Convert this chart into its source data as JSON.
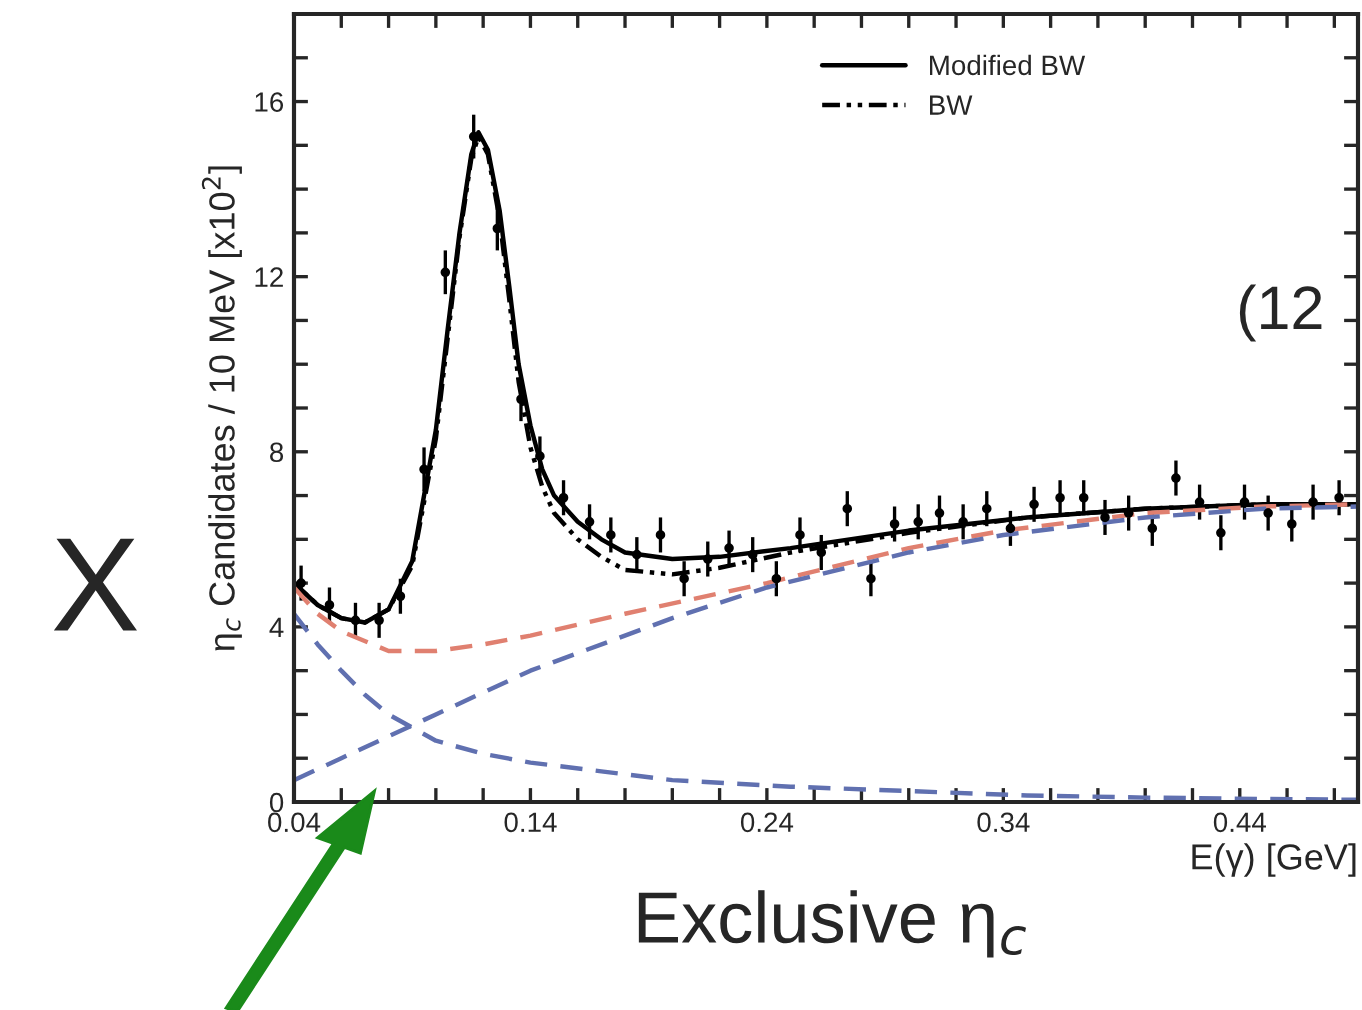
{
  "chart_data": {
    "type": "scatter",
    "xlabel": "E(γ) [GeV]",
    "ylabel": "η$_{c}$ Candidates / 10 MeV [x10$^{2}$]",
    "annotations": [
      "X",
      "(12",
      "Exclusive η$_{c}$"
    ],
    "xlim": [
      0.04,
      0.49
    ],
    "xticks": [
      0.04,
      {
        "value": 0.06,
        "label": null
      },
      {
        "value": 0.08,
        "label": null
      },
      {
        "value": 0.1,
        "label": null
      },
      {
        "value": 0.12,
        "label": null
      },
      0.14,
      {
        "value": 0.16,
        "label": null
      },
      {
        "value": 0.18,
        "label": null
      },
      {
        "value": 0.2,
        "label": null
      },
      {
        "value": 0.22,
        "label": null
      },
      0.24,
      {
        "value": 0.26,
        "label": null
      },
      {
        "value": 0.28,
        "label": null
      },
      {
        "value": 0.3,
        "label": null
      },
      {
        "value": 0.32,
        "label": null
      },
      0.34,
      {
        "value": 0.36,
        "label": null
      },
      {
        "value": 0.38,
        "label": null
      },
      {
        "value": 0.4,
        "label": null
      },
      {
        "value": 0.42,
        "label": null
      },
      0.44,
      {
        "value": 0.46,
        "label": null
      },
      {
        "value": 0.48,
        "label": null
      }
    ],
    "ylim": [
      0,
      18
    ],
    "yticks": [
      0,
      {
        "value": 1,
        "label": null
      },
      {
        "value": 2,
        "label": null
      },
      {
        "value": 3,
        "label": null
      },
      4,
      {
        "value": 5,
        "label": null
      },
      {
        "value": 6,
        "label": null
      },
      {
        "value": 7,
        "label": null
      },
      8,
      {
        "value": 9,
        "label": null
      },
      {
        "value": 10,
        "label": null
      },
      {
        "value": 11,
        "label": null
      },
      12,
      {
        "value": 13,
        "label": null
      },
      {
        "value": 14,
        "label": null
      },
      {
        "value": 15,
        "label": null
      },
      16,
      {
        "value": 17,
        "label": null
      }
    ],
    "legend": "top",
    "series": [
      {
        "color": "#000000",
        "marker": "circle",
        "x": [
          0.043,
          0.055,
          0.066,
          0.076,
          0.085,
          0.095,
          0.104,
          0.116,
          0.126,
          0.136,
          0.144,
          0.154,
          0.165,
          0.174,
          0.185,
          0.195,
          0.205,
          0.215,
          0.224,
          0.234,
          0.244,
          0.254,
          0.263,
          0.274,
          0.284,
          0.294,
          0.304,
          0.313,
          0.323,
          0.333,
          0.343,
          0.353,
          0.364,
          0.374,
          0.383,
          0.393,
          0.403,
          0.413,
          0.423,
          0.432,
          0.442,
          0.452,
          0.462,
          0.471,
          0.482
        ],
        "values": [
          5.0,
          4.5,
          4.15,
          4.15,
          4.7,
          7.6,
          12.1,
          15.2,
          13.1,
          9.2,
          7.9,
          6.95,
          6.4,
          6.1,
          5.65,
          6.1,
          5.1,
          5.55,
          5.8,
          5.65,
          5.1,
          6.1,
          5.7,
          6.7,
          5.1,
          6.35,
          6.4,
          6.6,
          6.4,
          6.7,
          6.25,
          6.8,
          6.95,
          6.95,
          6.5,
          6.6,
          6.25,
          7.4,
          6.85,
          6.15,
          6.85,
          6.6,
          6.35,
          6.85,
          6.95
        ],
        "errors": [
          0.4,
          0.4,
          0.4,
          0.4,
          0.4,
          0.5,
          0.5,
          0.5,
          0.5,
          0.5,
          0.45,
          0.4,
          0.4,
          0.4,
          0.4,
          0.4,
          0.4,
          0.4,
          0.4,
          0.4,
          0.4,
          0.4,
          0.4,
          0.4,
          0.4,
          0.4,
          0.4,
          0.4,
          0.4,
          0.4,
          0.4,
          0.4,
          0.4,
          0.4,
          0.4,
          0.4,
          0.4,
          0.4,
          0.4,
          0.4,
          0.4,
          0.4,
          0.4,
          0.4,
          0.4
        ]
      },
      {
        "type": "line",
        "name": "Modified BW",
        "color": "#000000",
        "line_style": "solid",
        "x": [
          0.04,
          0.05,
          0.06,
          0.07,
          0.08,
          0.09,
          0.1,
          0.105,
          0.11,
          0.115,
          0.118,
          0.122,
          0.127,
          0.131,
          0.135,
          0.14,
          0.145,
          0.15,
          0.16,
          0.17,
          0.18,
          0.2,
          0.22,
          0.25,
          0.3,
          0.35,
          0.4,
          0.45,
          0.49
        ],
        "values": [
          5.0,
          4.5,
          4.2,
          4.1,
          4.4,
          5.5,
          8.5,
          10.8,
          13.0,
          14.8,
          15.3,
          14.9,
          13.5,
          11.8,
          10.0,
          8.6,
          7.6,
          7.0,
          6.4,
          6.0,
          5.7,
          5.55,
          5.6,
          5.8,
          6.2,
          6.5,
          6.7,
          6.8,
          6.8
        ]
      },
      {
        "type": "line",
        "name": "BW",
        "color": "#000000",
        "line_style": "dotted",
        "x": [
          0.04,
          0.05,
          0.06,
          0.07,
          0.08,
          0.09,
          0.1,
          0.105,
          0.11,
          0.115,
          0.118,
          0.122,
          0.127,
          0.131,
          0.135,
          0.14,
          0.145,
          0.15,
          0.16,
          0.17,
          0.18,
          0.2,
          0.22,
          0.25,
          0.3,
          0.35,
          0.4,
          0.45,
          0.49
        ],
        "values": [
          5.0,
          4.5,
          4.2,
          4.1,
          4.4,
          5.4,
          8.3,
          10.6,
          12.9,
          14.7,
          15.2,
          14.8,
          13.3,
          11.5,
          9.6,
          8.1,
          7.2,
          6.6,
          6.0,
          5.6,
          5.3,
          5.2,
          5.35,
          5.7,
          6.15,
          6.5,
          6.7,
          6.8,
          6.8
        ]
      },
      {
        "type": "line",
        "color": "#e08070",
        "line_style": "dashed",
        "x": [
          0.04,
          0.05,
          0.06,
          0.08,
          0.1,
          0.12,
          0.14,
          0.18,
          0.24,
          0.3,
          0.34,
          0.4,
          0.45,
          0.49
        ],
        "values": [
          4.9,
          4.3,
          3.9,
          3.45,
          3.45,
          3.6,
          3.8,
          4.3,
          5.0,
          5.8,
          6.2,
          6.6,
          6.75,
          6.8
        ]
      },
      {
        "type": "line",
        "color": "#6070b0",
        "line_style": "dashed",
        "x": [
          0.04,
          0.06,
          0.08,
          0.1,
          0.14,
          0.2,
          0.24,
          0.3,
          0.34,
          0.4,
          0.45,
          0.49
        ],
        "values": [
          0.5,
          1.0,
          1.5,
          2.0,
          3.0,
          4.2,
          4.9,
          5.7,
          6.1,
          6.5,
          6.7,
          6.75
        ]
      },
      {
        "type": "line",
        "color": "#6070b0",
        "line_style": "dashed",
        "x": [
          0.04,
          0.05,
          0.06,
          0.07,
          0.08,
          0.1,
          0.12,
          0.14,
          0.17,
          0.2,
          0.25,
          0.3,
          0.35,
          0.4,
          0.45,
          0.49
        ],
        "values": [
          4.3,
          3.6,
          3.0,
          2.45,
          2.0,
          1.4,
          1.1,
          0.9,
          0.7,
          0.5,
          0.35,
          0.25,
          0.15,
          0.1,
          0.07,
          0.05
        ]
      }
    ]
  }
}
